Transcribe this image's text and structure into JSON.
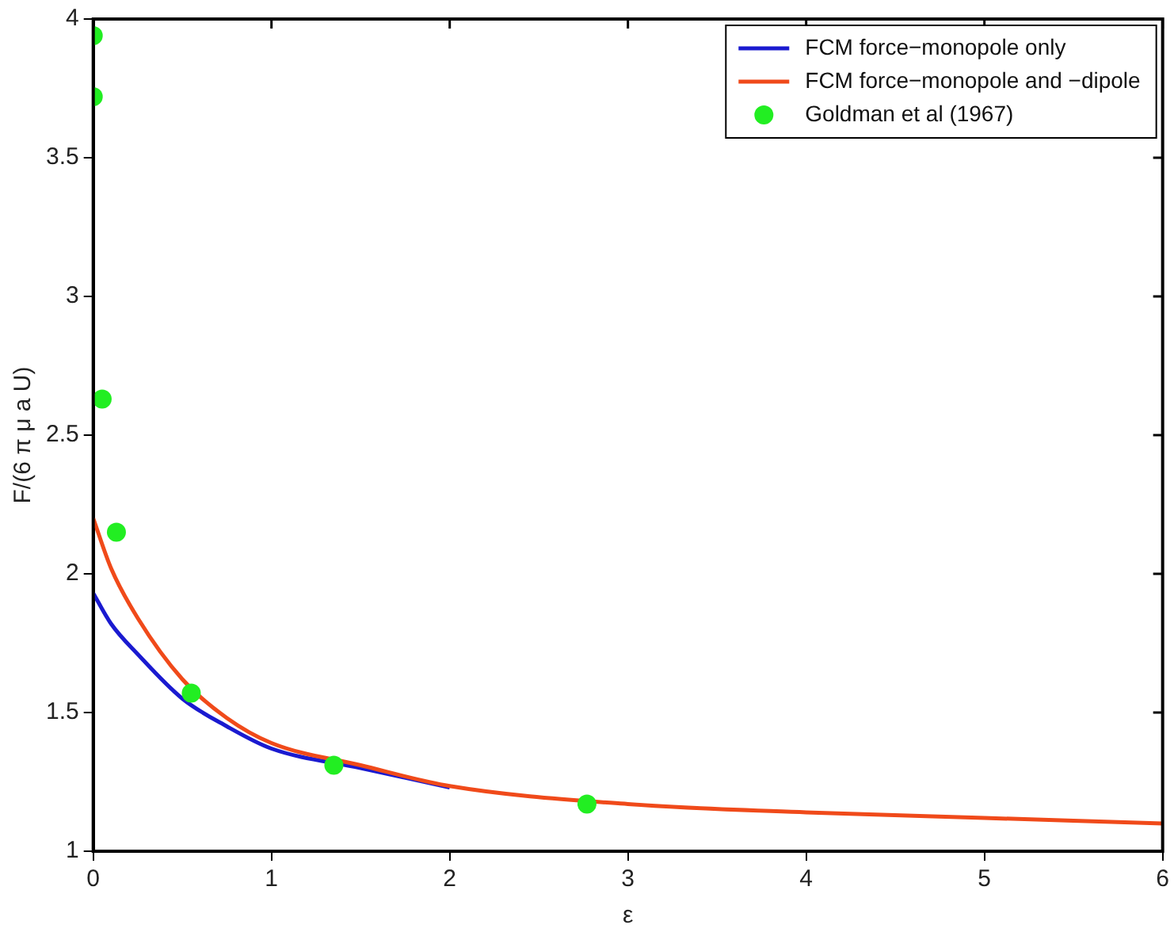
{
  "chart_data": {
    "type": "line",
    "xlabel": "ε",
    "ylabel": "F/(6 π μ a U)",
    "xlim": [
      0,
      6
    ],
    "ylim": [
      1,
      4
    ],
    "xticks": [
      0,
      1,
      2,
      3,
      4,
      5,
      6
    ],
    "yticks": [
      1,
      1.5,
      2,
      2.5,
      3,
      3.5,
      4
    ],
    "grid": false,
    "legend": "top right",
    "marker": "none",
    "line_style": "solid",
    "series": [
      {
        "name": "FCM force−monopole only",
        "color": "#1a1ad0",
        "x": [
          0,
          0.1,
          0.25,
          0.5,
          0.75,
          1,
          1.5,
          2
        ],
        "values": [
          1.93,
          1.82,
          1.71,
          1.55,
          1.45,
          1.37,
          1.3,
          1.23
        ]
      },
      {
        "name": "FCM force−monopole and −dipole",
        "color": "#f04a1a",
        "x": [
          0,
          0.1,
          0.25,
          0.5,
          0.75,
          1,
          1.5,
          2,
          3,
          4,
          5,
          6
        ],
        "values": [
          2.2,
          2.02,
          1.84,
          1.62,
          1.48,
          1.39,
          1.31,
          1.235,
          1.17,
          1.14,
          1.12,
          1.1
        ]
      },
      {
        "name": "Goldman et al (1967)",
        "type": "scatter",
        "marker": "circle",
        "color": "#22ee22",
        "x": [
          0,
          0,
          0.05,
          0.13,
          0.55,
          1.35,
          2.77
        ],
        "values": [
          3.94,
          3.72,
          2.63,
          2.15,
          1.57,
          1.31,
          1.17
        ]
      }
    ]
  }
}
